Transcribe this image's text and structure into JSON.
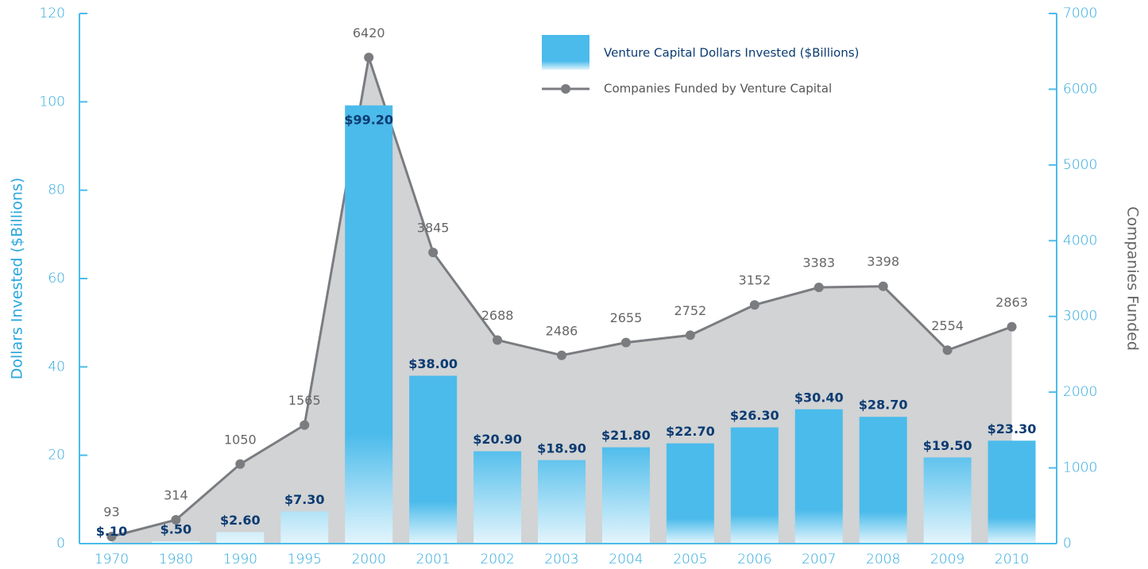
{
  "chart_data": {
    "type": "bar-line",
    "categories": [
      "1970",
      "1980",
      "1990",
      "1995",
      "2000",
      "2001",
      "2002",
      "2003",
      "2004",
      "2005",
      "2006",
      "2007",
      "2008",
      "2009",
      "2010"
    ],
    "series": [
      {
        "name": "Venture Capital Dollars Invested ($Billions)",
        "type": "bar",
        "color": "#4bbbeb",
        "values": [
          0.1,
          0.5,
          2.6,
          7.3,
          99.2,
          38,
          20.9,
          18.9,
          21.8,
          22.7,
          26.3,
          30.4,
          28.7,
          19.5,
          23.3
        ],
        "value_labels": [
          "$.10",
          "$.50",
          "$2.60",
          "$7.30",
          "$99.20",
          "$38.00",
          "$20.90",
          "$18.90",
          "$21.80",
          "$22.70",
          "$26.30",
          "$30.40",
          "$28.70",
          "$19.50",
          "$23.30"
        ]
      },
      {
        "name": "Companies Funded by Venture Capital",
        "type": "line",
        "axis": "y2",
        "color": "#7a7c80",
        "fill": "#d1d3d4",
        "values": [
          93,
          314,
          1050,
          1565,
          6420,
          3845,
          2688,
          2486,
          2655,
          2752,
          3152,
          3383,
          3398,
          2554,
          2863
        ]
      }
    ],
    "ylabel": "Dollars Invested ($Billions)",
    "y2label": "Companies Funded",
    "ylim": [
      0,
      120
    ],
    "yticks": [
      0,
      20,
      40,
      60,
      80,
      100,
      120
    ],
    "y2lim": [
      0,
      7000
    ],
    "y2ticks": [
      0,
      1000,
      2000,
      3000,
      4000,
      5000,
      6000,
      7000
    ],
    "axis_color": "#4bbbeb",
    "legend": "top-right"
  }
}
